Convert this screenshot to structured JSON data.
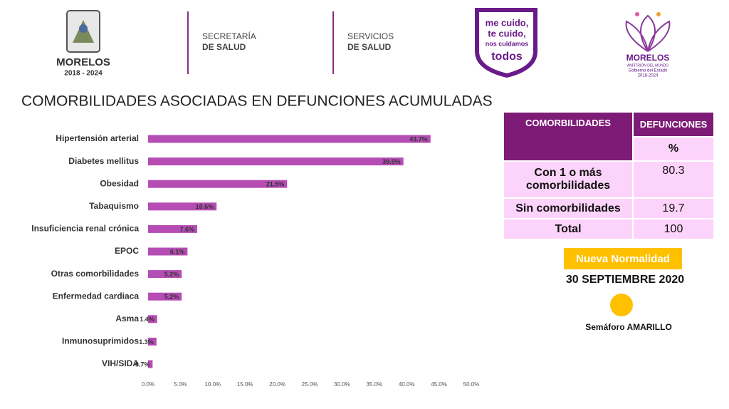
{
  "header": {
    "state_logo": {
      "name": "MORELOS",
      "period": "2018 - 2024"
    },
    "department_1": [
      "SECRETARÍA",
      "DE SALUD"
    ],
    "department_2": [
      "SERVICIOS",
      "DE SALUD"
    ],
    "campaign": [
      "me cuido,",
      "te cuido,",
      "nos cuidamos",
      "todos"
    ],
    "government_logo": {
      "name": "MORELOS",
      "tagline": "ANFITRIÓN DEL MUNDO",
      "line1": "Gobierno del Estado",
      "line2": "2018-2024"
    }
  },
  "chart_data": {
    "type": "bar",
    "orientation": "horizontal",
    "title": "COMORBILIDADES ASOCIADAS EN DEFUNCIONES ACUMULADAS",
    "categories": [
      "Hipertensión arterial",
      "Diabetes mellitus",
      "Obesidad",
      "Tabaquismo",
      "Insuficiencia renal crónica",
      "EPOC",
      "Otras comorbilidades",
      "Enfermedad cardiaca",
      "Asma",
      "Inmunosuprimidos",
      "VIH/SIDA"
    ],
    "values": [
      43.7,
      39.5,
      21.5,
      10.6,
      7.6,
      6.1,
      5.2,
      5.2,
      1.4,
      1.3,
      0.7
    ],
    "value_labels": [
      "43.7%",
      "39.5%",
      "21.5%",
      "10.6%",
      "7.6%",
      "6.1%",
      "5.2%",
      "5.2%",
      "1.4%",
      "1.3%",
      "0.7%"
    ],
    "color": "#b64db4",
    "xlim": [
      0,
      50
    ],
    "xticks": [
      {
        "value": 0,
        "label": "0.0%"
      },
      {
        "value": 5,
        "label": "5.0%"
      },
      {
        "value": 10,
        "label": "10.0%"
      },
      {
        "value": 15,
        "label": "15.0%"
      },
      {
        "value": 20,
        "label": "20.0%"
      },
      {
        "value": 25,
        "label": "25.0%"
      },
      {
        "value": 30,
        "label": "30.0%"
      },
      {
        "value": 35,
        "label": "35.0%"
      },
      {
        "value": 40,
        "label": "40.0%"
      },
      {
        "value": 45,
        "label": "45.0%"
      },
      {
        "value": 50,
        "label": "50.0%"
      }
    ],
    "grid": false
  },
  "table": {
    "header": [
      "COMORBILIDADES",
      "DEFUNCIONES"
    ],
    "unit": "%",
    "rows": [
      [
        "Con 1 o más comorbilidades",
        80.3
      ],
      [
        "Sin comorbilidades",
        19.7
      ],
      [
        "Total",
        100
      ]
    ]
  },
  "status": {
    "phase": "Nueva Normalidad",
    "date": "30 SEPTIEMBRE 2020",
    "light": "Semáforo AMARILLO"
  }
}
